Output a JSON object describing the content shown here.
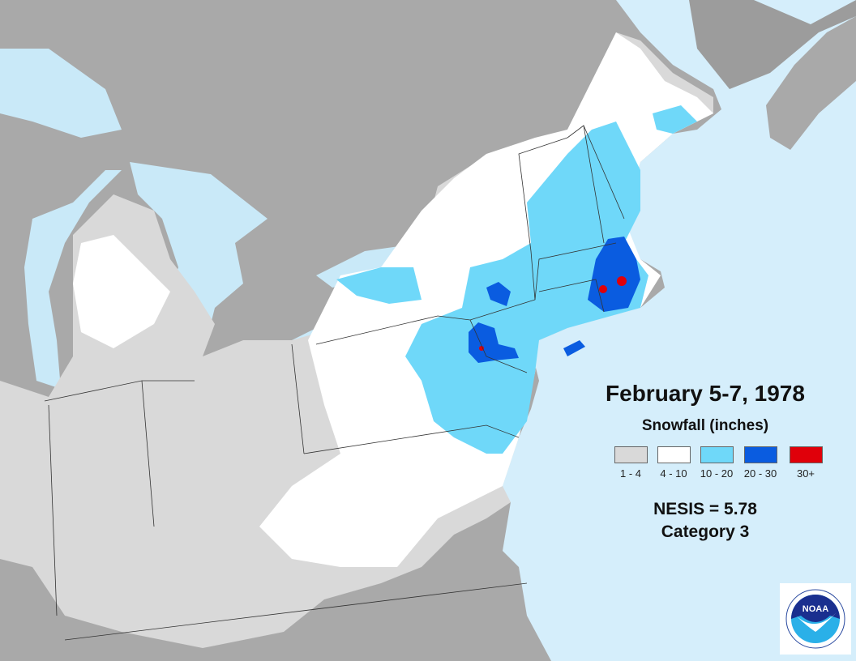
{
  "title": "February 5-7, 1978",
  "legend": {
    "title": "Snowfall (inches)",
    "items": [
      {
        "label": "1 - 4",
        "color": "#d9d9d9"
      },
      {
        "label": "4 - 10",
        "color": "#ffffff"
      },
      {
        "label": "10 - 20",
        "color": "#6fd8f9"
      },
      {
        "label": "20 - 30",
        "color": "#0a5ce0"
      },
      {
        "label": "30+",
        "color": "#e0000a"
      }
    ]
  },
  "nesis": "NESIS = 5.78",
  "category": "Category 3",
  "logo": {
    "text": "NOAA"
  },
  "colors": {
    "ocean": "#d5eefb",
    "land": "#a9a9a9",
    "lake": "#c9e9f8"
  }
}
